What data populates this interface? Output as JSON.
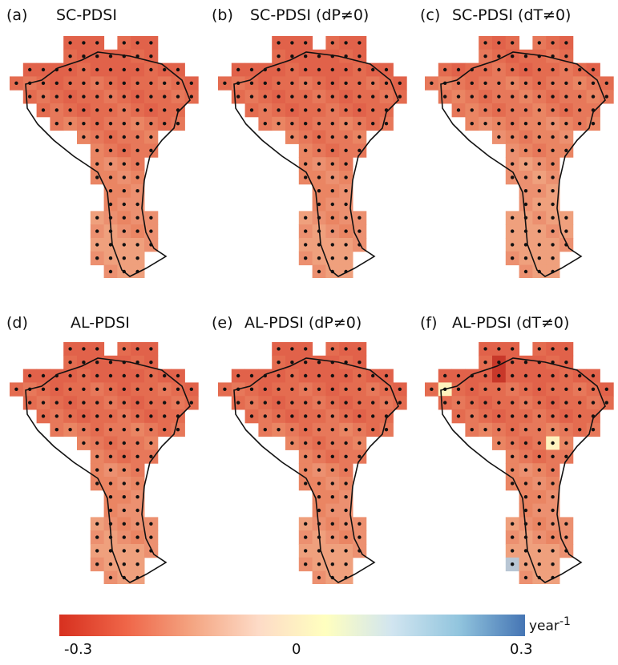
{
  "panels": [
    {
      "label": "(a)",
      "title": "SC-PDSI"
    },
    {
      "label": "(b)",
      "title": "SC-PDSI (dP≠0)"
    },
    {
      "label": "(c)",
      "title": "SC-PDSI (dT≠0)"
    },
    {
      "label": "(d)",
      "title": "AL-PDSI"
    },
    {
      "label": "(e)",
      "title": "AL-PDSI (dP≠0)"
    },
    {
      "label": "(f)",
      "title": "AL-PDSI (dT≠0)"
    }
  ],
  "colorbar": {
    "min_label": "-0.3",
    "mid_label": "0",
    "max_label": "0.3",
    "unit": "year",
    "unit_exponent": "-1",
    "colors": [
      "#d7301f",
      "#ef6548",
      "#f4a582",
      "#fddbc7",
      "#ffffbf",
      "#d1e5f0",
      "#92c5de",
      "#4575b4"
    ]
  },
  "grid_masks": [
    [
      "....xxx.xxx....",
      "....xxxxxxx....",
      ".xxxxxxxxxxxx..",
      "xxxxxxxxxxxxxx.",
      ".xxxxxxxxxxxxx.",
      "..xxxxxxxxxxx..",
      "...xxxxxxxxxx..",
      ".....xxxxxx....",
      "......xxxxx....",
      "......xxxx.....",
      "......xxxx.....",
      ".......xxx.....",
      ".......xxx.....",
      "......xxxxx....",
      "......xxxxx....",
      "......xxxxx....",
      "......xxxx.....",
      ".......xxx....."
    ]
  ]
}
